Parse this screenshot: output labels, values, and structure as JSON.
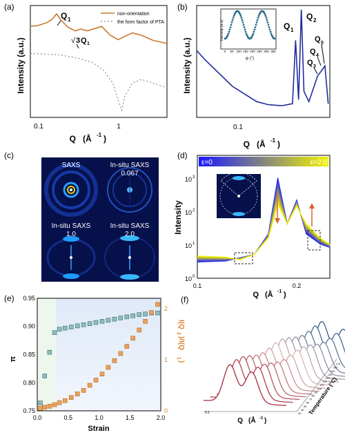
{
  "panels": {
    "a": {
      "tag": "(a)",
      "ylabel": "Intensity (a.u.)",
      "xlabel_main": "Q",
      "xlabel_unit": "(Å",
      "xlabel_exp": "-1",
      "xlabel_close": ")",
      "xticks": [
        "0.1",
        "1"
      ],
      "legend": [
        "non-orientation",
        "the form factor of PTA"
      ],
      "annot_q1": "Q",
      "annot_q1_sub": "1",
      "annot_sqrt3_num": "3",
      "annot_sqrt3_q": "Q",
      "annot_sqrt3_sub": "1",
      "colors": {
        "main": "#c9782c",
        "form": "#8a8a8a"
      }
    },
    "b": {
      "tag": "(b)",
      "ylabel": "Intensity (a.u.)",
      "xlabel_main": "Q",
      "xlabel_unit": "(Å",
      "xlabel_exp": "-1",
      "xlabel_close": ")",
      "xticks": [
        "0.1"
      ],
      "peaks": [
        "Q",
        "Q",
        "Q",
        "Q",
        "Q"
      ],
      "peak_subs": [
        "1",
        "2",
        "3",
        "4",
        "5"
      ],
      "inset_ylabel": "Intensity (a.u)",
      "inset_xlabel": "φ (°)",
      "inset_xticks": [
        "0",
        "50",
        "100",
        "150",
        "200",
        "250",
        "300",
        "350"
      ],
      "colors": {
        "main": "#1f2a9c",
        "inset": "#2e6e8e"
      }
    },
    "c": {
      "tag": "(c)",
      "labels": [
        "SAXS",
        "In-situ SAXS",
        "0.067",
        "In-situ SAXS",
        "1.0",
        "In-situ SAXS",
        "2.0"
      ]
    },
    "d": {
      "tag": "(d)",
      "ylabel": "Intensity",
      "xlabel_main": "Q",
      "xlabel_unit": "(Å",
      "xlabel_exp": "-1",
      "xlabel_close": ")",
      "xticks": [
        "0.1",
        "0.2"
      ],
      "yticks_base": [
        "10",
        "10",
        "10",
        "10"
      ],
      "yticks_exp": [
        "0",
        "1",
        "2",
        "3"
      ],
      "bar_left": "ε=0",
      "bar_right": "ε=2.0",
      "colors": {
        "start": "#1a1aff",
        "end": "#f2f200",
        "arrow": "#d9622b"
      }
    },
    "e": {
      "tag": "(e)",
      "xlabel": "Strain",
      "ylabel_left": "π",
      "ylabel_right": "I(Q",
      "ylabel_right_sub2": "2",
      "ylabel_right_mid": ")/I(Q",
      "ylabel_right_sub1": "1",
      "ylabel_right_end": ")",
      "xticks": [
        "0.0",
        "0.5",
        "1.0",
        "1.5",
        "2.0"
      ],
      "yticks_left": [
        "0.75",
        "0.80",
        "0.85",
        "0.90",
        "0.95"
      ],
      "yticks_right": [
        "0",
        "1",
        "2"
      ],
      "colors": {
        "left": "#8fbcbc",
        "right": "#e8a25c",
        "shade_green": "#eef7ee",
        "shade_blue": "#e6eef9"
      }
    },
    "f": {
      "tag": "(f)",
      "xlabel_main": "Q",
      "xlabel_unit": "(Å",
      "xlabel_exp": "-1",
      "xlabel_close": ")",
      "xtick": "0.1",
      "zlabel": "Temperature (°C)",
      "ztick_labels": [
        "30",
        "40",
        "50",
        "60",
        "70",
        "80",
        "90",
        "100",
        "110",
        "120",
        "130",
        "140",
        "150",
        "160",
        "170"
      ]
    }
  },
  "chart_data": [
    {
      "type": "line",
      "title": "",
      "xlabel": "Q (Å-1)",
      "ylabel": "Intensity (a.u.)",
      "xscale": "log",
      "yscale": "log",
      "xlim": [
        0.1,
        2.8
      ],
      "series": [
        {
          "name": "non-orientation",
          "x": [
            0.1,
            0.12,
            0.15,
            0.17,
            0.19,
            0.21,
            0.25,
            0.3,
            0.34,
            0.4,
            0.5,
            0.57,
            0.7,
            0.85,
            1.0,
            1.2,
            1.5,
            2.0,
            2.8
          ],
          "y": [
            0.6,
            0.62,
            0.7,
            0.8,
            1.0,
            0.78,
            0.58,
            0.5,
            0.54,
            0.5,
            0.56,
            0.6,
            0.42,
            0.35,
            0.4,
            0.46,
            0.42,
            0.34,
            0.3
          ]
        },
        {
          "name": "the form factor of PTA",
          "x": [
            0.1,
            0.2,
            0.3,
            0.45,
            0.6,
            0.75,
            0.85,
            0.93,
            1.0,
            1.2,
            1.5,
            2.0,
            2.8
          ],
          "y": [
            0.2,
            0.19,
            0.17,
            0.14,
            0.1,
            0.06,
            0.03,
            0.02,
            0.035,
            0.06,
            0.07,
            0.06,
            0.05
          ]
        }
      ],
      "legend": "top-right"
    },
    {
      "type": "line",
      "xlabel": "Q (Å-1)",
      "ylabel": "Intensity (a.u.)",
      "xscale": "log",
      "series": [
        {
          "x": [
            0.025,
            0.03,
            0.05,
            0.08,
            0.1,
            0.13,
            0.16,
            0.17,
            0.18,
            0.19,
            0.2,
            0.22,
            0.26,
            0.28,
            0.3,
            0.32
          ],
          "y": [
            0.6,
            0.5,
            0.25,
            0.1,
            0.07,
            0.06,
            0.08,
            0.7,
            0.12,
            1.0,
            0.2,
            0.1,
            0.35,
            0.4,
            0.45,
            0.08
          ]
        }
      ],
      "peaks": [
        "Q1",
        "Q2",
        "Q3",
        "Q4",
        "Q5"
      ],
      "inset": {
        "type": "scatter",
        "xlabel": "φ (°)",
        "ylabel": "Intensity (a.u)",
        "x": [
          0,
          25,
          50,
          75,
          90,
          105,
          130,
          155,
          180,
          205,
          230,
          255,
          270,
          285,
          310,
          335,
          360
        ],
        "y": [
          0.2,
          0.3,
          0.55,
          0.85,
          1.0,
          0.85,
          0.55,
          0.3,
          0.2,
          0.3,
          0.55,
          0.85,
          1.0,
          0.85,
          0.55,
          0.3,
          0.2
        ]
      }
    },
    {
      "type": "line",
      "xlabel": "Q (Å-1)",
      "ylabel": "Intensity",
      "yscale": "log",
      "xlim": [
        0.1,
        0.24
      ],
      "ylim": [
        1,
        1000
      ],
      "strain_range": [
        0,
        2.0
      ],
      "series": [
        {
          "name": "ε=0",
          "x": [
            0.1,
            0.13,
            0.145,
            0.16,
            0.175,
            0.185,
            0.195,
            0.205,
            0.215,
            0.23,
            0.24
          ],
          "y": [
            3.0,
            3.2,
            4.0,
            5,
            20,
            900,
            40,
            200,
            20,
            10,
            8
          ]
        },
        {
          "name": "ε=2.0",
          "x": [
            0.1,
            0.13,
            0.145,
            0.16,
            0.175,
            0.185,
            0.195,
            0.205,
            0.215,
            0.23,
            0.24
          ],
          "y": [
            4.5,
            4.2,
            3.5,
            5,
            15,
            150,
            40,
            130,
            40,
            15,
            10
          ]
        }
      ]
    },
    {
      "type": "scatter",
      "xlabel": "Strain",
      "ylabel": "π",
      "xlim": [
        0.0,
        2.0
      ],
      "ylim": [
        0.75,
        0.95
      ],
      "y2lim": [
        0,
        2.2
      ],
      "series": [
        {
          "name": "π",
          "x": [
            0.05,
            0.12,
            0.2,
            0.28,
            0.36,
            0.45,
            0.55,
            0.65,
            0.75,
            0.85,
            0.95,
            1.05,
            1.15,
            1.25,
            1.35,
            1.45,
            1.55,
            1.65,
            1.75,
            1.85,
            1.95
          ],
          "y": [
            0.764,
            0.812,
            0.854,
            0.889,
            0.895,
            0.897,
            0.899,
            0.901,
            0.903,
            0.905,
            0.907,
            0.909,
            0.911,
            0.913,
            0.915,
            0.917,
            0.919,
            0.921,
            0.922,
            0.924,
            0.924
          ]
        },
        {
          "name": "I(Q2)/I(Q1)",
          "x": [
            0.05,
            0.12,
            0.2,
            0.28,
            0.36,
            0.45,
            0.55,
            0.65,
            0.75,
            0.85,
            0.95,
            1.05,
            1.15,
            1.25,
            1.35,
            1.45,
            1.55,
            1.65,
            1.75,
            1.85,
            1.95
          ],
          "y": [
            0.05,
            0.07,
            0.09,
            0.12,
            0.16,
            0.2,
            0.26,
            0.33,
            0.4,
            0.5,
            0.6,
            0.72,
            0.85,
            0.98,
            1.12,
            1.26,
            1.42,
            1.58,
            1.75,
            1.92,
            2.08
          ]
        }
      ],
      "shaded_regions": [
        [
          0.0,
          0.35
        ],
        [
          0.35,
          2.0
        ]
      ]
    },
    {
      "type": "line",
      "xlabel": "Q (Å-1)",
      "zlabel": "Temperature (°C)",
      "temperatures": [
        30,
        40,
        50,
        60,
        70,
        80,
        90,
        100,
        110,
        120,
        130,
        140,
        150,
        160,
        170
      ]
    }
  ]
}
